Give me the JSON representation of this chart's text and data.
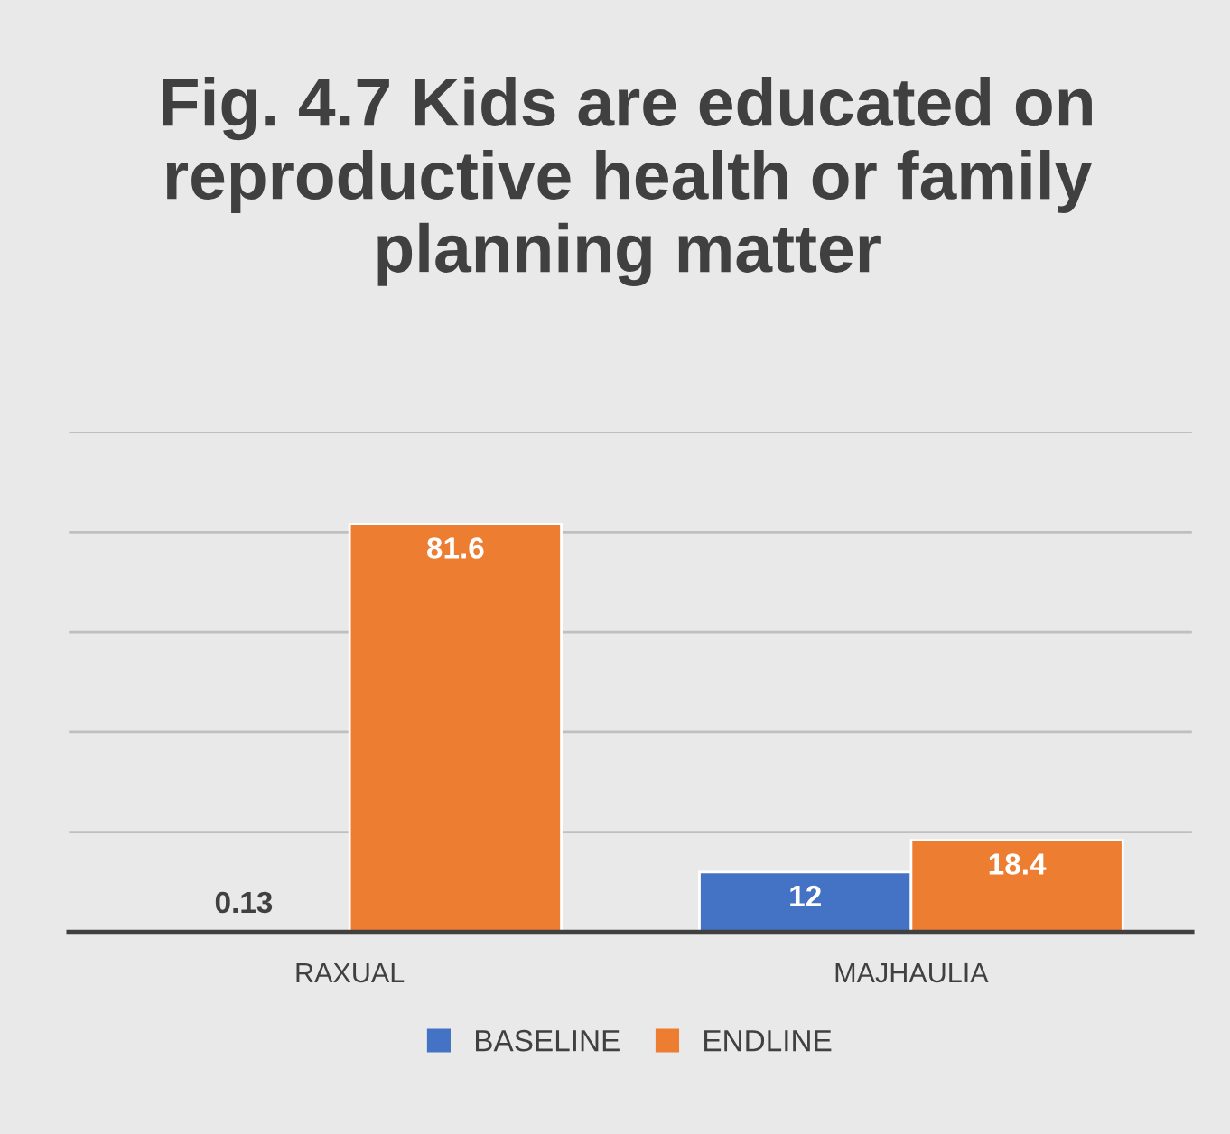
{
  "chart_data": {
    "type": "bar",
    "title": "Fig. 4.7 Kids are educated on reproductive health or family planning matter",
    "categories": [
      "RAXUAL",
      "MAJHAULIA"
    ],
    "series": [
      {
        "name": "BASELINE",
        "color": "#4472c4",
        "values": [
          0.13,
          12
        ]
      },
      {
        "name": "ENDLINE",
        "color": "#ed7d31",
        "values": [
          81.6,
          18.4
        ]
      }
    ],
    "ylim": [
      0,
      100
    ],
    "yticks": [
      {
        "value": 0,
        "label": null
      },
      {
        "value": 20,
        "label": null
      },
      {
        "value": 40,
        "label": null
      },
      {
        "value": 60,
        "label": null
      },
      {
        "value": 80,
        "label": null
      },
      {
        "value": 100,
        "label": null
      }
    ],
    "grid": "y",
    "legend": "bottom",
    "data_labels": true,
    "tick_labels": "x"
  }
}
